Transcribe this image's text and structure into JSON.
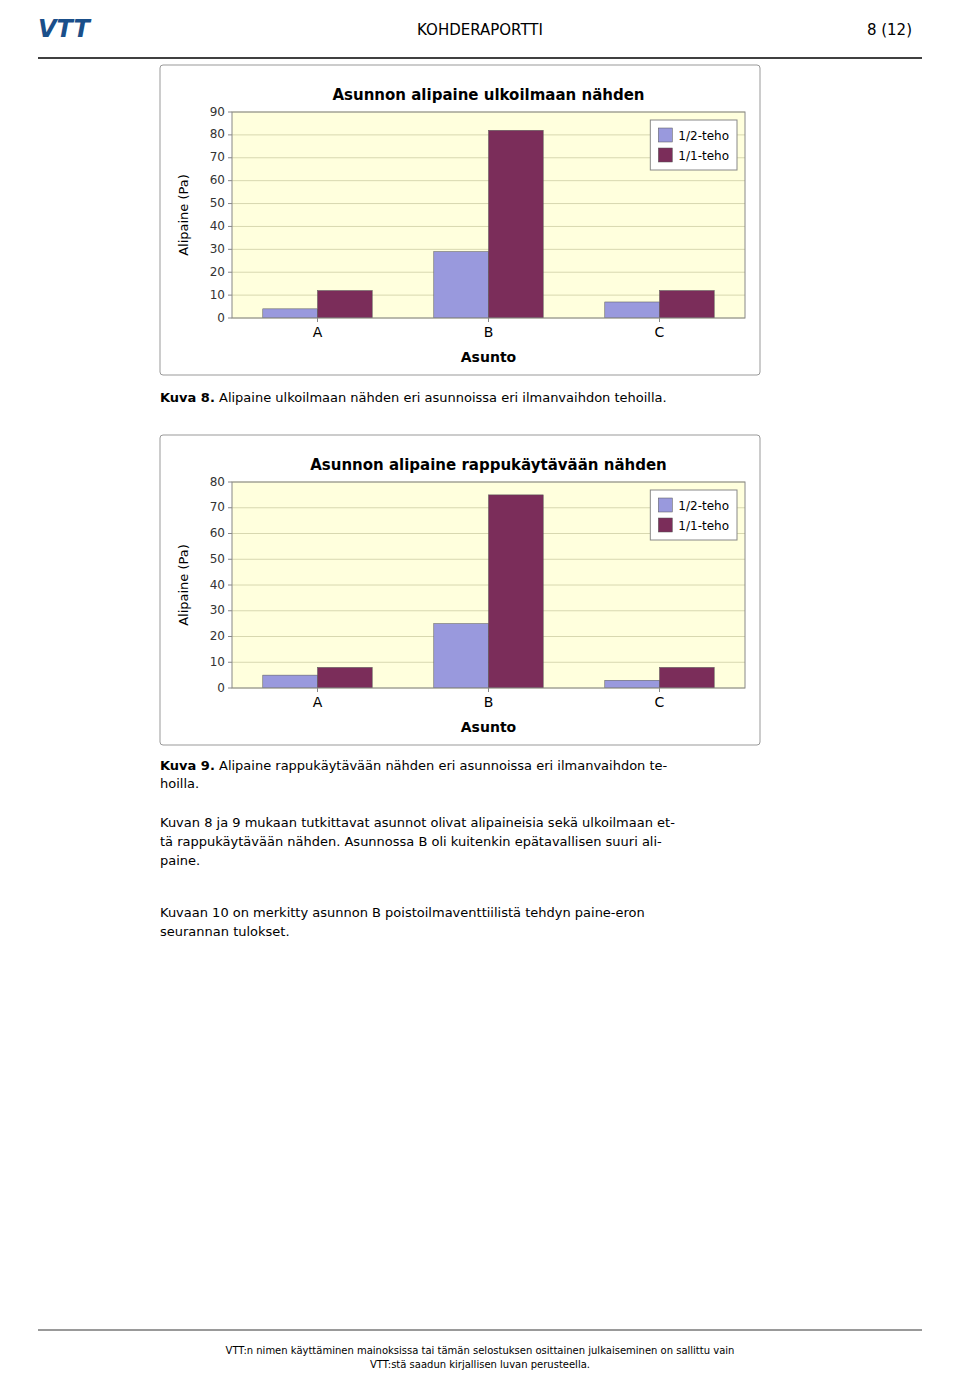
{
  "chart_data": [
    {
      "type": "bar",
      "title": "Asunnon alipaine ulkoilmaan nähden",
      "categories": [
        "A",
        "B",
        "C"
      ],
      "series": [
        {
          "name": "1/2-teho",
          "color": "#9999DD",
          "values": [
            4,
            29,
            7
          ]
        },
        {
          "name": "1/1-teho",
          "color": "#7B2D5A",
          "values": [
            12,
            82,
            12
          ]
        }
      ],
      "xlabel": "Asunto",
      "ylabel": "Alipaine (Pa)",
      "ylim": [
        0,
        90
      ],
      "yticks": [
        0,
        10,
        20,
        30,
        40,
        50,
        60,
        70,
        80,
        90
      ],
      "grid": true,
      "legend": "upper right",
      "caption_label": "Kuva 8.",
      "caption": " Alipaine ulkoilmaan nähden eri asunnoissa eri ilmanvaihdon tehoilla."
    },
    {
      "type": "bar",
      "title": "Asunnon alipaine rappukäytävään nähden",
      "categories": [
        "A",
        "B",
        "C"
      ],
      "series": [
        {
          "name": "1/2-teho",
          "color": "#9999DD",
          "values": [
            5,
            25,
            3
          ]
        },
        {
          "name": "1/1-teho",
          "color": "#7B2D5A",
          "values": [
            8,
            75,
            8
          ]
        }
      ],
      "xlabel": "Asunto",
      "ylabel": "Alipaine (Pa)",
      "ylim": [
        0,
        80
      ],
      "yticks": [
        0,
        10,
        20,
        30,
        40,
        50,
        60,
        70,
        80
      ],
      "grid": true,
      "legend": "upper right",
      "caption_label": "Kuva 9.",
      "caption": " Alipaine rappukäytävään nähden eri asunnoissa eri ilmanvaihdon te-\nhoilla."
    }
  ],
  "page": {
    "logo": "VTT",
    "header": "KOHDERAPORTTI",
    "page_number": "8 (12)",
    "body": [
      "Kuvan 8 ja 9 mukaan tutkittavat asunnot olivat alipaineisia sekä ulkoilmaan et-\ntä rappukäytävään nähden. Asunnossa B oli kuitenkin epätavallisen suuri ali-\npaine.",
      "Kuvaan 10 on merkitty asunnon B poistoilmaventtiilistä tehdyn paine-eron\nseurannan tulokset."
    ],
    "footer": "VTT:n nimen käyttäminen mainoksissa tai tämän selostuksen osittainen julkaiseminen on sallittu vain\nVTT:stä saadun kirjallisen luvan perusteella."
  }
}
